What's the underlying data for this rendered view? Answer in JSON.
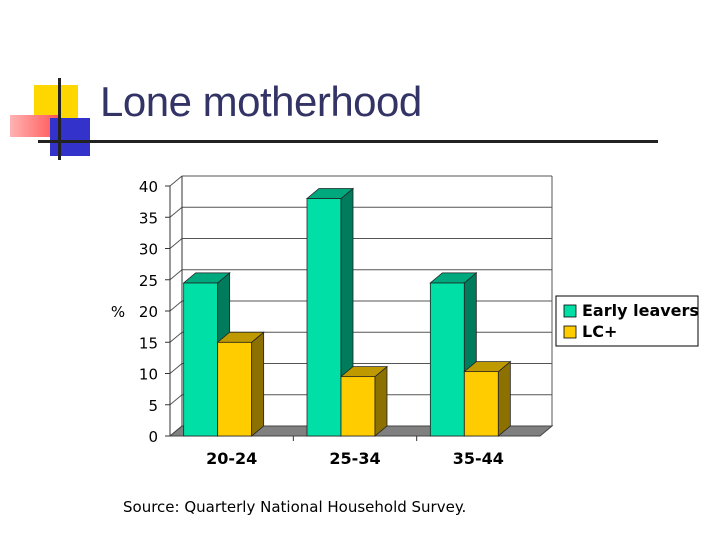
{
  "slide": {
    "title": "Lone motherhood",
    "source": "Source: Quarterly National Household Survey."
  },
  "colors": {
    "early_leavers": "#00e0a6",
    "lc_plus": "#ffcc00",
    "title": "#333366"
  },
  "chart_data": {
    "type": "bar",
    "title": "",
    "xlabel": "",
    "ylabel": "%",
    "ylim": [
      0,
      40
    ],
    "yticks": [
      0,
      5,
      10,
      15,
      20,
      25,
      30,
      35,
      40
    ],
    "grid": true,
    "legend_position": "right",
    "categories": [
      "20-24",
      "25-34",
      "35-44"
    ],
    "series": [
      {
        "name": "Early leavers",
        "values": [
          24.5,
          38,
          24.5
        ]
      },
      {
        "name": "LC+",
        "values": [
          15,
          9.5,
          10.3
        ]
      }
    ]
  }
}
